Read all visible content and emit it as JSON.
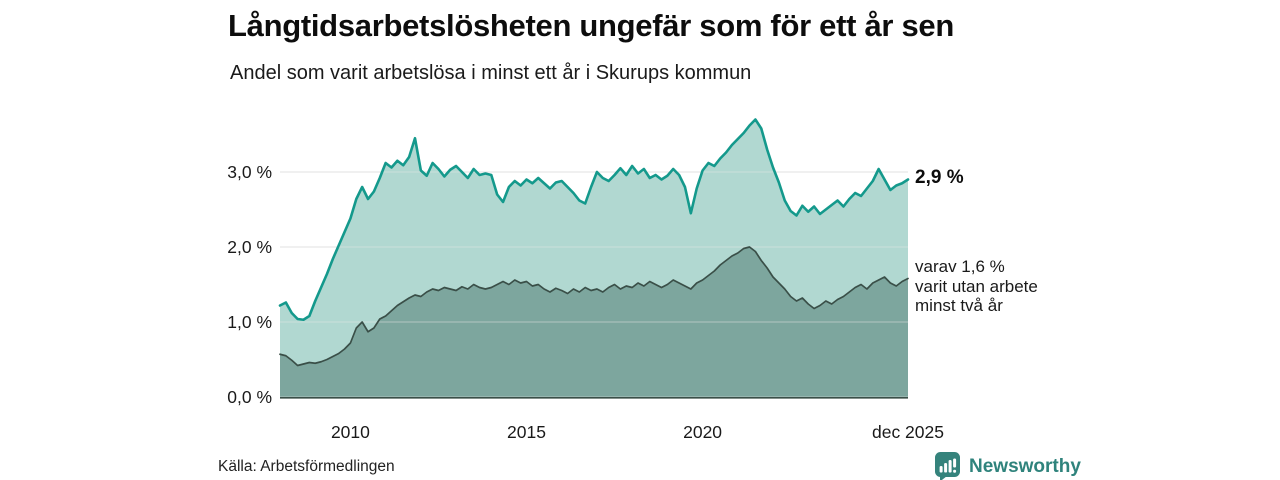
{
  "header": {
    "title": "Långtidsarbetslösheten ungefär som för ett år sen",
    "subtitle": "Andel som varit arbetslösa i minst ett år i Skurups kommun"
  },
  "annotations": {
    "total_end_label": "2,9 %",
    "subset_end_label": "varav 1,6 %\nvarit utan arbete\nminst två år"
  },
  "source": {
    "label": "Källa: Arbetsförmedlingen"
  },
  "branding": {
    "name": "Newsworthy",
    "color": "#2f837c",
    "icon": "newsworthy-bar-chart-bubble-icon"
  },
  "colors": {
    "total_line": "#14998c",
    "total_fill": "#b1d8d1",
    "subset_line": "#3a4f48",
    "subset_fill": "#7da69e",
    "gridline": "#d9d9d9",
    "axis_baseline": "#3a4f48"
  },
  "chart_data": {
    "type": "area",
    "title": "Långtidsarbetslösheten ungefär som för ett år sen",
    "subtitle": "Andel som varit arbetslösa i minst ett år i Skurups kommun",
    "unit": "%",
    "x_start": 2008.0,
    "x_step_years": 0.166667,
    "ylim": [
      0,
      3.85
    ],
    "grid": true,
    "legend": "end-labels",
    "y_ticks": [
      {
        "v": 0,
        "label": "0,0 %"
      },
      {
        "v": 1,
        "label": "1,0 %"
      },
      {
        "v": 2,
        "label": "2,0 %"
      },
      {
        "v": 3,
        "label": "3,0 %"
      }
    ],
    "x_ticks": [
      {
        "t": 2010,
        "label": "2010"
      },
      {
        "t": 2015,
        "label": "2015"
      },
      {
        "t": 2020,
        "label": "2020"
      },
      {
        "t": 2025.92,
        "label": "dec 2025"
      }
    ],
    "series": [
      {
        "name": "Andel arbetslösa minst ett år",
        "end_value_label": "2,9 %",
        "color_line": "#14998c",
        "color_fill": "#b1d8d1",
        "values": [
          1.22,
          1.26,
          1.12,
          1.04,
          1.03,
          1.08,
          1.28,
          1.46,
          1.64,
          1.84,
          2.02,
          2.2,
          2.38,
          2.64,
          2.8,
          2.64,
          2.74,
          2.92,
          3.12,
          3.06,
          3.15,
          3.09,
          3.2,
          3.45,
          3.02,
          2.95,
          3.12,
          3.04,
          2.94,
          3.03,
          3.08,
          3.0,
          2.92,
          3.04,
          2.96,
          2.98,
          2.96,
          2.7,
          2.6,
          2.8,
          2.88,
          2.82,
          2.9,
          2.85,
          2.92,
          2.85,
          2.78,
          2.86,
          2.88,
          2.8,
          2.72,
          2.62,
          2.58,
          2.8,
          3.0,
          2.92,
          2.88,
          2.96,
          3.05,
          2.96,
          3.08,
          2.98,
          3.04,
          2.92,
          2.96,
          2.9,
          2.95,
          3.04,
          2.96,
          2.8,
          2.45,
          2.78,
          3.02,
          3.12,
          3.08,
          3.18,
          3.26,
          3.36,
          3.44,
          3.52,
          3.62,
          3.7,
          3.58,
          3.3,
          3.06,
          2.86,
          2.62,
          2.48,
          2.42,
          2.55,
          2.47,
          2.54,
          2.44,
          2.5,
          2.56,
          2.62,
          2.54,
          2.64,
          2.72,
          2.68,
          2.78,
          2.88,
          3.04,
          2.9,
          2.76,
          2.82,
          2.85,
          2.9
        ]
      },
      {
        "name": "varav utan arbete minst två år",
        "end_value_label": "1,6 %",
        "color_line": "#3a4f48",
        "color_fill": "#7da69e",
        "values": [
          0.57,
          0.55,
          0.49,
          0.42,
          0.44,
          0.46,
          0.45,
          0.47,
          0.5,
          0.54,
          0.58,
          0.64,
          0.72,
          0.92,
          1.0,
          0.87,
          0.92,
          1.04,
          1.08,
          1.15,
          1.22,
          1.27,
          1.32,
          1.36,
          1.34,
          1.4,
          1.44,
          1.42,
          1.46,
          1.44,
          1.42,
          1.47,
          1.44,
          1.5,
          1.46,
          1.44,
          1.46,
          1.5,
          1.54,
          1.5,
          1.56,
          1.52,
          1.54,
          1.48,
          1.5,
          1.44,
          1.4,
          1.45,
          1.42,
          1.38,
          1.44,
          1.4,
          1.46,
          1.42,
          1.44,
          1.4,
          1.46,
          1.5,
          1.44,
          1.48,
          1.46,
          1.52,
          1.48,
          1.54,
          1.5,
          1.46,
          1.5,
          1.56,
          1.52,
          1.48,
          1.44,
          1.52,
          1.56,
          1.62,
          1.68,
          1.76,
          1.82,
          1.88,
          1.92,
          1.98,
          2.0,
          1.94,
          1.82,
          1.72,
          1.6,
          1.52,
          1.44,
          1.34,
          1.28,
          1.32,
          1.24,
          1.18,
          1.22,
          1.28,
          1.24,
          1.3,
          1.34,
          1.4,
          1.46,
          1.5,
          1.44,
          1.52,
          1.56,
          1.6,
          1.52,
          1.48,
          1.54,
          1.58
        ]
      }
    ]
  }
}
